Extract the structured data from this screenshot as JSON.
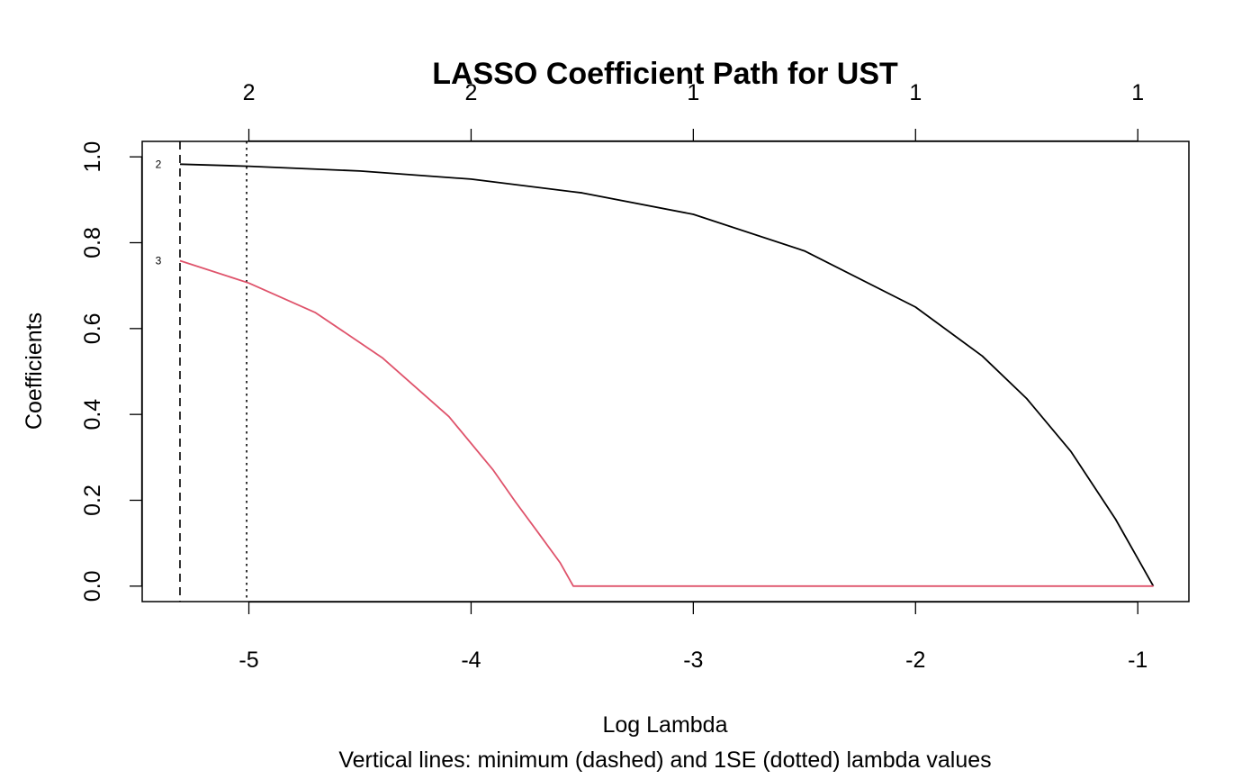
{
  "chart_data": {
    "type": "line",
    "title": "LASSO Coefficient Path for UST",
    "xlabel": "Log Lambda",
    "ylabel": "Coefficients",
    "subtitle": "Vertical lines: minimum (dashed) and 1SE (dotted) lambda values",
    "xlim": [
      -5.48,
      -0.77
    ],
    "ylim": [
      -0.036,
      1.036
    ],
    "x_ticks": [
      -5,
      -4,
      -3,
      -2,
      -1
    ],
    "x_tick_labels": [
      "-5",
      "-4",
      "-3",
      "-2",
      "-1"
    ],
    "y_ticks": [
      0.0,
      0.2,
      0.4,
      0.6,
      0.8,
      1.0
    ],
    "y_tick_labels": [
      "0.0",
      "0.2",
      "0.4",
      "0.6",
      "0.8",
      "1.0"
    ],
    "top_axis": {
      "ticks": [
        -5,
        -4,
        -3,
        -2,
        -1
      ],
      "labels": [
        "2",
        "2",
        "1",
        "1",
        "1"
      ]
    },
    "grid": false,
    "legend": "none",
    "series": [
      {
        "label": "2",
        "color": "#000000",
        "x": [
          -5.31,
          -5.0,
          -4.5,
          -4.0,
          -3.5,
          -3.0,
          -2.5,
          -2.0,
          -1.7,
          -1.5,
          -1.3,
          -1.1,
          -0.93
        ],
        "y": [
          0.983,
          0.978,
          0.967,
          0.948,
          0.916,
          0.866,
          0.781,
          0.65,
          0.536,
          0.437,
          0.313,
          0.156,
          0.0
        ]
      },
      {
        "label": "3",
        "color": "#DF536B",
        "x": [
          -5.31,
          -5.0,
          -4.7,
          -4.4,
          -4.1,
          -3.9,
          -3.8,
          -3.7,
          -3.6,
          -3.54,
          -0.93
        ],
        "y": [
          0.758,
          0.706,
          0.637,
          0.532,
          0.395,
          0.27,
          0.196,
          0.126,
          0.055,
          0.0,
          0.0
        ]
      }
    ],
    "vlines": [
      {
        "x": -5.31,
        "style": "dashed",
        "meaning": "minimum"
      },
      {
        "x": -5.01,
        "style": "dotted",
        "meaning": "1SE"
      }
    ]
  }
}
